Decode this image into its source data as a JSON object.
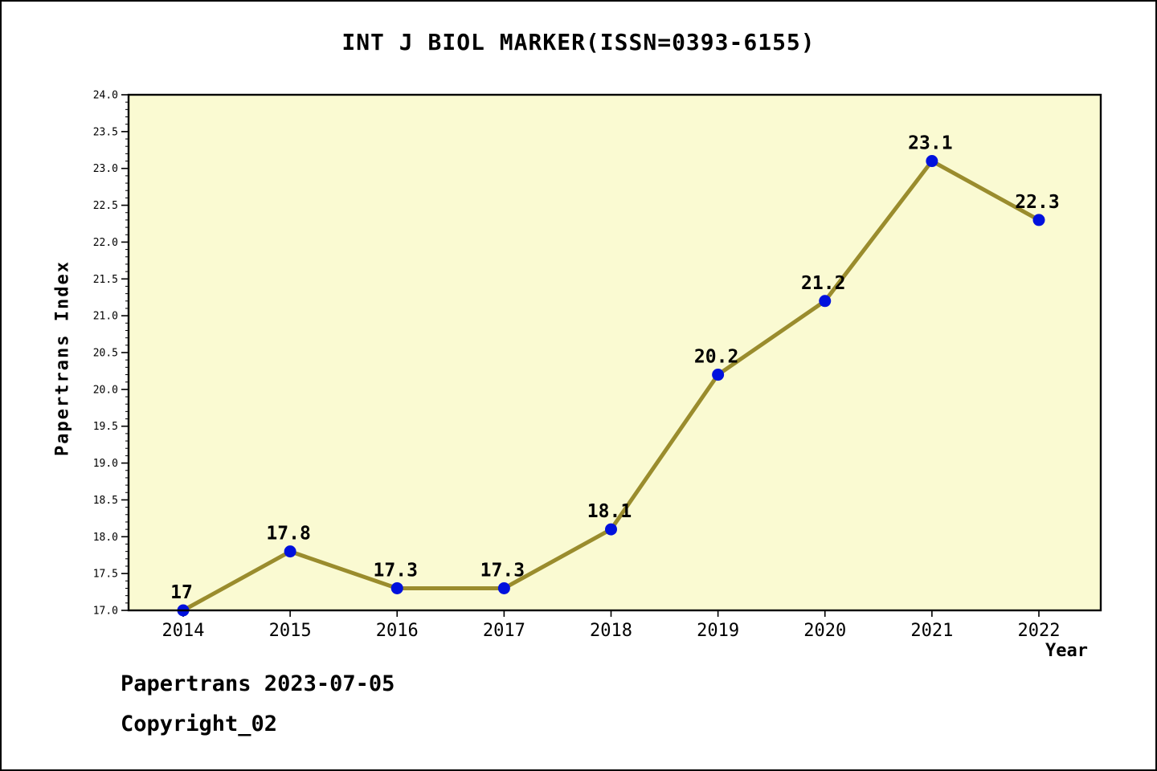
{
  "title": "INT J BIOL MARKER(ISSN=0393-6155)",
  "footer": {
    "line1": "Papertrans 2023-07-05",
    "line2": "Copyright_02"
  },
  "chart_data": {
    "type": "line",
    "title": "INT J BIOL MARKER(ISSN=0393-6155)",
    "xlabel": "Year",
    "ylabel": "Papertrans Index",
    "x": [
      2014,
      2015,
      2016,
      2017,
      2018,
      2019,
      2020,
      2021,
      2022
    ],
    "values": [
      17,
      17.8,
      17.3,
      17.3,
      18.1,
      20.2,
      21.2,
      23.1,
      22.3
    ],
    "point_labels": [
      "17",
      "17.8",
      "17.3",
      "17.3",
      "18.1",
      "20.2",
      "21.2",
      "23.1",
      "22.3"
    ],
    "ylim": [
      17.0,
      24.0
    ],
    "ytick_step": 0.5,
    "yminor_step": 0.1,
    "grid": false,
    "legend": null,
    "colors": {
      "plot_bg": "#fafad2",
      "line": "#9a8c2d",
      "marker": "#0011dd",
      "axis": "#000000",
      "text": "#000000"
    }
  }
}
